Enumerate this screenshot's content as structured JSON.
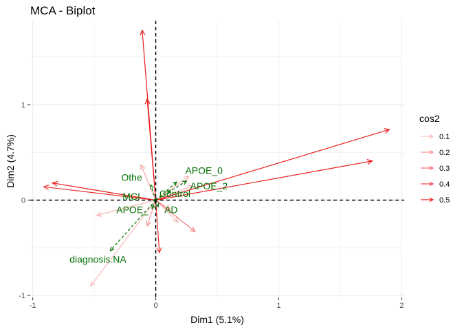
{
  "chart_data": {
    "type": "scatter",
    "title": "MCA - Biplot",
    "xlabel": "Dim1 (5.1%)",
    "ylabel": "Dim2 (4.7%)",
    "xlim": [
      -1.02,
      2.02
    ],
    "ylim": [
      -1.02,
      1.88
    ],
    "x_ticks": [
      -1,
      0,
      1,
      2
    ],
    "y_ticks": [
      -1,
      0,
      1
    ],
    "x_tick_labels": [
      "-1",
      "0",
      "1",
      "2"
    ],
    "y_tick_labels": [
      "-1",
      "0",
      "1"
    ],
    "grid": true,
    "reference_lines": {
      "x": 0,
      "y": 0,
      "style": "dashed"
    },
    "legend": {
      "title": "cos2",
      "position": "right",
      "entries": [
        {
          "label": "0.1",
          "value": 0.1
        },
        {
          "label": "0.2",
          "value": 0.2
        },
        {
          "label": "0.3",
          "value": 0.3
        },
        {
          "label": "0.4",
          "value": 0.4
        },
        {
          "label": "0.5",
          "value": 0.5
        }
      ]
    },
    "variable_arrows": [
      {
        "x": -0.11,
        "y": 1.78,
        "cos2": 0.5
      },
      {
        "x": -0.07,
        "y": 1.06,
        "cos2": 0.5
      },
      {
        "x": 1.9,
        "y": 0.74,
        "cos2": 0.5
      },
      {
        "x": 1.76,
        "y": 0.41,
        "cos2": 0.5
      },
      {
        "x": -0.84,
        "y": 0.18,
        "cos2": 0.5
      },
      {
        "x": -0.91,
        "y": 0.14,
        "cos2": 0.45
      },
      {
        "x": 0.03,
        "y": -0.55,
        "cos2": 0.45
      },
      {
        "x": 0.32,
        "y": -0.33,
        "cos2": 0.25
      },
      {
        "x": -0.12,
        "y": 0.37,
        "cos2": 0.15
      },
      {
        "x": -0.48,
        "y": -0.16,
        "cos2": 0.12
      },
      {
        "x": -0.53,
        "y": -0.9,
        "cos2": 0.1
      },
      {
        "x": 0.18,
        "y": -0.23,
        "cos2": 0.12
      },
      {
        "x": 0.27,
        "y": 0.25,
        "cos2": 0.12
      },
      {
        "x": -0.07,
        "y": -0.27,
        "cos2": 0.2
      },
      {
        "x": 0.12,
        "y": -0.1,
        "cos2": 0.15
      },
      {
        "x": 0.3,
        "y": 0.15,
        "cos2": 0.12
      }
    ],
    "supplementary_points": [
      {
        "label": "APOE_0",
        "x": 0.17,
        "y": 0.19,
        "label_x": 0.24,
        "label_y": 0.31
      },
      {
        "label": "APOE_2",
        "x": 0.25,
        "y": 0.2,
        "label_x": 0.28,
        "label_y": 0.15
      },
      {
        "label": "Control",
        "x": 0.12,
        "y": 0.1,
        "label_x": 0.03,
        "label_y": 0.07
      },
      {
        "label": "Othe",
        "x": -0.04,
        "y": 0.16,
        "label_x": -0.28,
        "label_y": 0.24
      },
      {
        "label": "MCI",
        "x": -0.02,
        "y": 0.0,
        "label_x": -0.27,
        "label_y": 0.04
      },
      {
        "label": "APOE_",
        "x": -0.03,
        "y": -0.09,
        "label_x": -0.32,
        "label_y": -0.1
      },
      {
        "label": "AD",
        "x": 0.02,
        "y": -0.07,
        "label_x": 0.07,
        "label_y": -0.1
      },
      {
        "label": "diagnosis.NA",
        "x": -0.37,
        "y": -0.53,
        "label_x": -0.7,
        "label_y": -0.62
      }
    ],
    "colors": {
      "arrow_low": "#fbbcbc",
      "arrow_high": "#ee1c1c",
      "supplementary": "#007000",
      "grid": "#ebebeb",
      "reference": "#000000"
    }
  }
}
